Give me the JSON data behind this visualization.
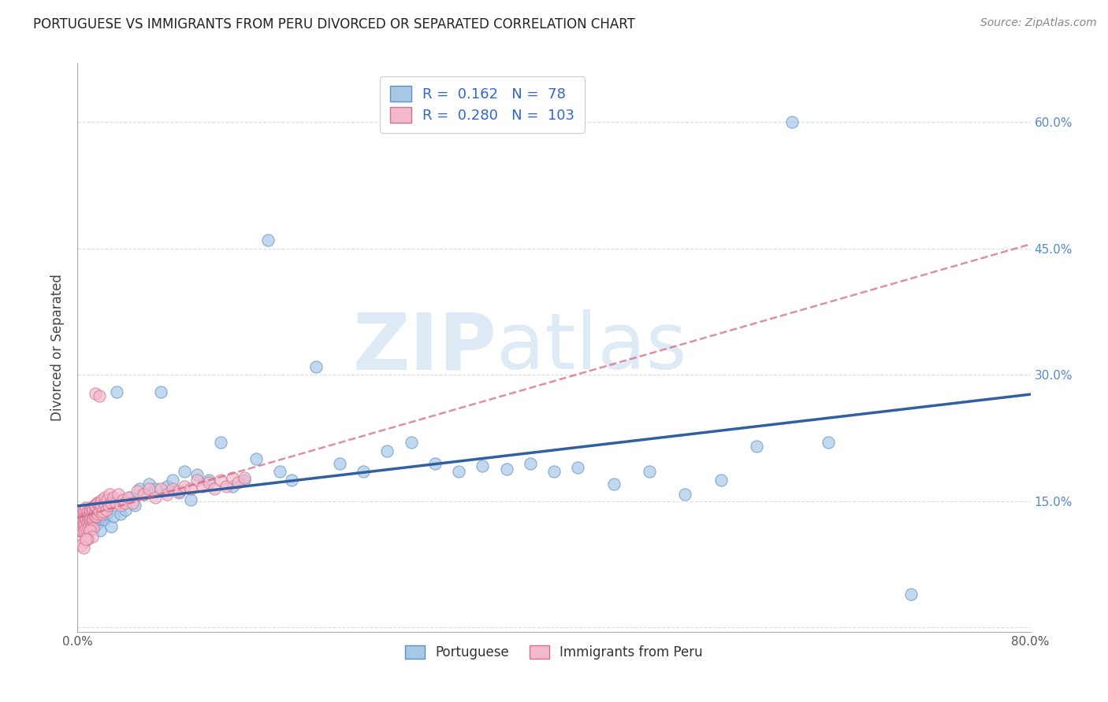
{
  "title": "PORTUGUESE VS IMMIGRANTS FROM PERU DIVORCED OR SEPARATED CORRELATION CHART",
  "source": "Source: ZipAtlas.com",
  "ylabel": "Divorced or Separated",
  "xlim": [
    0.0,
    0.8
  ],
  "ylim": [
    -0.005,
    0.67
  ],
  "yticks": [
    0.0,
    0.15,
    0.3,
    0.45,
    0.6
  ],
  "ytick_labels": [
    "",
    "15.0%",
    "30.0%",
    "45.0%",
    "60.0%"
  ],
  "xticks": [
    0.0,
    0.1,
    0.2,
    0.3,
    0.4,
    0.5,
    0.6,
    0.7,
    0.8
  ],
  "xtick_labels": [
    "0.0%",
    "",
    "",
    "",
    "",
    "",
    "",
    "",
    "80.0%"
  ],
  "blue_color": "#a8c8e8",
  "pink_color": "#f4b8cb",
  "blue_edge_color": "#6090c0",
  "pink_edge_color": "#d07090",
  "blue_line_color": "#3060a0",
  "pink_line_color": "#d06080",
  "legend_r_blue": "0.162",
  "legend_n_blue": "78",
  "legend_r_pink": "0.280",
  "legend_n_pink": "103",
  "watermark_zip": "ZIP",
  "watermark_atlas": "atlas",
  "title_fontsize": 12,
  "source_fontsize": 10,
  "blue_scatter_x": [
    0.001,
    0.002,
    0.002,
    0.003,
    0.003,
    0.004,
    0.004,
    0.005,
    0.005,
    0.006,
    0.006,
    0.007,
    0.007,
    0.008,
    0.008,
    0.009,
    0.009,
    0.01,
    0.01,
    0.011,
    0.011,
    0.012,
    0.013,
    0.014,
    0.015,
    0.016,
    0.017,
    0.018,
    0.019,
    0.02,
    0.022,
    0.025,
    0.028,
    0.03,
    0.033,
    0.036,
    0.04,
    0.044,
    0.048,
    0.052,
    0.056,
    0.06,
    0.065,
    0.07,
    0.075,
    0.08,
    0.085,
    0.09,
    0.095,
    0.1,
    0.11,
    0.12,
    0.13,
    0.14,
    0.15,
    0.16,
    0.17,
    0.18,
    0.2,
    0.22,
    0.24,
    0.26,
    0.28,
    0.3,
    0.32,
    0.34,
    0.36,
    0.38,
    0.4,
    0.42,
    0.45,
    0.48,
    0.51,
    0.54,
    0.57,
    0.6,
    0.63,
    0.7
  ],
  "blue_scatter_y": [
    0.125,
    0.13,
    0.115,
    0.132,
    0.12,
    0.128,
    0.118,
    0.135,
    0.122,
    0.125,
    0.118,
    0.13,
    0.115,
    0.128,
    0.12,
    0.132,
    0.118,
    0.125,
    0.13,
    0.118,
    0.122,
    0.135,
    0.128,
    0.12,
    0.13,
    0.132,
    0.125,
    0.128,
    0.115,
    0.132,
    0.128,
    0.135,
    0.12,
    0.132,
    0.28,
    0.135,
    0.14,
    0.155,
    0.145,
    0.165,
    0.158,
    0.17,
    0.165,
    0.28,
    0.168,
    0.175,
    0.16,
    0.185,
    0.152,
    0.182,
    0.175,
    0.22,
    0.168,
    0.175,
    0.2,
    0.46,
    0.185,
    0.175,
    0.31,
    0.195,
    0.185,
    0.21,
    0.22,
    0.195,
    0.185,
    0.192,
    0.188,
    0.195,
    0.185,
    0.19,
    0.17,
    0.185,
    0.158,
    0.175,
    0.215,
    0.6,
    0.22,
    0.04
  ],
  "pink_scatter_x": [
    0.001,
    0.001,
    0.001,
    0.002,
    0.002,
    0.002,
    0.002,
    0.003,
    0.003,
    0.003,
    0.003,
    0.004,
    0.004,
    0.004,
    0.004,
    0.005,
    0.005,
    0.005,
    0.005,
    0.006,
    0.006,
    0.006,
    0.006,
    0.007,
    0.007,
    0.007,
    0.007,
    0.008,
    0.008,
    0.008,
    0.009,
    0.009,
    0.009,
    0.01,
    0.01,
    0.01,
    0.011,
    0.011,
    0.011,
    0.012,
    0.012,
    0.012,
    0.013,
    0.013,
    0.013,
    0.014,
    0.014,
    0.014,
    0.015,
    0.015,
    0.015,
    0.016,
    0.016,
    0.017,
    0.017,
    0.018,
    0.018,
    0.019,
    0.019,
    0.02,
    0.02,
    0.021,
    0.022,
    0.023,
    0.024,
    0.025,
    0.026,
    0.027,
    0.028,
    0.03,
    0.032,
    0.034,
    0.036,
    0.038,
    0.04,
    0.043,
    0.046,
    0.05,
    0.055,
    0.06,
    0.065,
    0.07,
    0.075,
    0.08,
    0.085,
    0.09,
    0.095,
    0.1,
    0.105,
    0.11,
    0.115,
    0.12,
    0.125,
    0.13,
    0.135,
    0.14,
    0.01,
    0.012,
    0.006,
    0.008,
    0.003,
    0.005,
    0.007
  ],
  "pink_scatter_y": [
    0.125,
    0.135,
    0.12,
    0.128,
    0.118,
    0.132,
    0.115,
    0.13,
    0.12,
    0.138,
    0.115,
    0.128,
    0.135,
    0.12,
    0.115,
    0.132,
    0.125,
    0.138,
    0.118,
    0.13,
    0.122,
    0.14,
    0.115,
    0.132,
    0.128,
    0.142,
    0.118,
    0.135,
    0.125,
    0.138,
    0.128,
    0.132,
    0.118,
    0.135,
    0.128,
    0.14,
    0.13,
    0.138,
    0.118,
    0.135,
    0.128,
    0.142,
    0.13,
    0.14,
    0.118,
    0.135,
    0.132,
    0.145,
    0.278,
    0.132,
    0.145,
    0.132,
    0.148,
    0.135,
    0.148,
    0.275,
    0.138,
    0.145,
    0.148,
    0.135,
    0.152,
    0.138,
    0.148,
    0.155,
    0.14,
    0.152,
    0.145,
    0.158,
    0.148,
    0.155,
    0.148,
    0.158,
    0.145,
    0.152,
    0.148,
    0.155,
    0.148,
    0.162,
    0.158,
    0.165,
    0.155,
    0.165,
    0.158,
    0.165,
    0.162,
    0.168,
    0.165,
    0.175,
    0.168,
    0.172,
    0.165,
    0.175,
    0.168,
    0.178,
    0.172,
    0.178,
    0.115,
    0.108,
    0.102,
    0.105,
    0.098,
    0.095,
    0.105
  ]
}
